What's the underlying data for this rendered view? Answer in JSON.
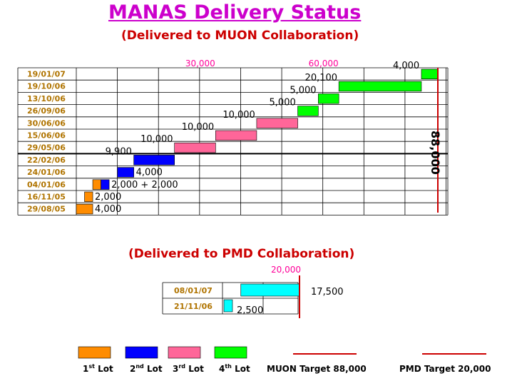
{
  "title": "MANAS Delivery Status",
  "chart_data": [
    {
      "type": "bar",
      "subtitle": "(Delivered to MUON Collaboration)",
      "xlim": [
        0,
        100000
      ],
      "ticks": [
        30000,
        60000
      ],
      "tick_labels": [
        "30,000",
        "60,000"
      ],
      "target": {
        "value": 88000,
        "label": "88,000"
      },
      "rows": [
        {
          "date": "19/01/07",
          "segments": [
            {
              "start": 84000,
              "value": 4000,
              "lot": 4
            }
          ],
          "label": "4,000"
        },
        {
          "date": "19/10/06",
          "segments": [
            {
              "start": 63900,
              "value": 20100,
              "lot": 4
            }
          ],
          "label": "20,100"
        },
        {
          "date": "13/10/06",
          "segments": [
            {
              "start": 58900,
              "value": 5000,
              "lot": 4
            }
          ],
          "label": "5,000"
        },
        {
          "date": "26/09/06",
          "segments": [
            {
              "start": 53900,
              "value": 5000,
              "lot": 4
            }
          ],
          "label": "5,000"
        },
        {
          "date": "30/06/06",
          "segments": [
            {
              "start": 43900,
              "value": 10000,
              "lot": 3
            }
          ],
          "label": "10,000"
        },
        {
          "date": "15/06/06",
          "segments": [
            {
              "start": 33900,
              "value": 10000,
              "lot": 3
            }
          ],
          "label": "10,000"
        },
        {
          "date": "29/05/06",
          "segments": [
            {
              "start": 23900,
              "value": 10000,
              "lot": 3
            }
          ],
          "label": "10,000"
        },
        {
          "date": "22/02/06",
          "segments": [
            {
              "start": 14000,
              "value": 9900,
              "lot": 2
            }
          ],
          "label": "9,900"
        },
        {
          "date": "24/01/06",
          "segments": [
            {
              "start": 10000,
              "value": 4000,
              "lot": 2
            }
          ],
          "label": "4,000"
        },
        {
          "date": "04/01/06",
          "segments": [
            {
              "start": 4000,
              "value": 2000,
              "lot": 1
            },
            {
              "start": 6000,
              "value": 2000,
              "lot": 2
            }
          ],
          "label": "2,000 + 2,000"
        },
        {
          "date": "16/11/05",
          "segments": [
            {
              "start": 2000,
              "value": 2000,
              "lot": 1
            }
          ],
          "label": "2,000"
        },
        {
          "date": "29/08/05",
          "segments": [
            {
              "start": 0,
              "value": 4000,
              "lot": 1
            }
          ],
          "label": "4,000"
        }
      ]
    },
    {
      "type": "bar",
      "subtitle": "(Delivered to PMD Collaboration)",
      "xlim": [
        0,
        20000
      ],
      "ticks": [
        20000
      ],
      "tick_labels": [
        "20,000"
      ],
      "target": {
        "value": 20000
      },
      "rows": [
        {
          "date": "08/01/07",
          "segments": [
            {
              "start": 2500,
              "value": 17500,
              "lot": 1
            }
          ],
          "label": "17,500"
        },
        {
          "date": "21/11/06",
          "segments": [
            {
              "start": 0,
              "value": 2500,
              "lot": 1
            }
          ],
          "label": "2,500"
        }
      ]
    }
  ],
  "legend": {
    "lots": [
      {
        "label": "Lot",
        "ord": "1",
        "sup": "st",
        "color": "#ff8c00"
      },
      {
        "label": "Lot",
        "ord": "2",
        "sup": "nd",
        "color": "#0000ff"
      },
      {
        "label": "Lot",
        "ord": "3",
        "sup": "rd",
        "color": "#ff6699"
      },
      {
        "label": "Lot",
        "ord": "4",
        "sup": "th",
        "color": "#00ff00"
      }
    ],
    "targets": [
      {
        "label": "MUON Target 88,000",
        "color": "#cc0000"
      },
      {
        "label": "PMD Target 20,000",
        "color": "#cc0000"
      }
    ]
  },
  "colors": {
    "lot1": "#ff8c00",
    "lot2": "#0000ff",
    "lot3": "#ff6699",
    "lot4": "#00ff00",
    "pmd": "#00ffff",
    "target": "#cc0000",
    "date": "#b07400",
    "tick": "#ff0099",
    "title": "#cc00cc",
    "subtitle": "#cc0000"
  }
}
